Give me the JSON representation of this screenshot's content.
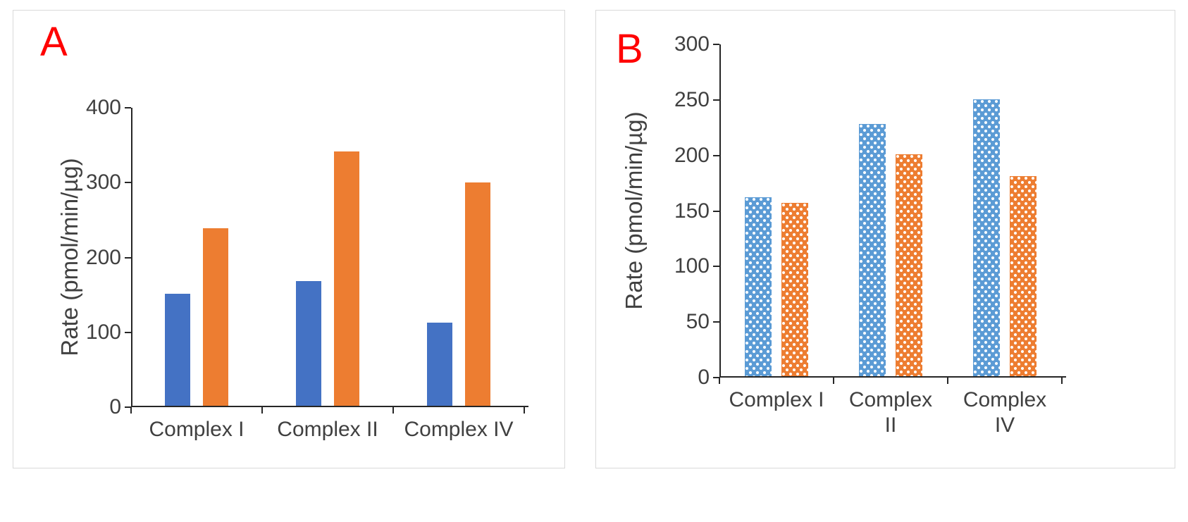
{
  "figure": {
    "background": "#FFFFFF",
    "panel_border_color": "#D9D9D9",
    "panel_label_color": "#FF0000",
    "axis_line_color": "#262626",
    "text_color": "#404040"
  },
  "chart_data": [
    {
      "panel_label": "A",
      "type": "bar",
      "title": "",
      "ylabel": "Rate (pmol/min/µg)",
      "xlabel": "",
      "categories": [
        "Complex I",
        "Complex II",
        "Complex IV"
      ],
      "series": [
        {
          "name": "series-1-blue",
          "color": "#4472C4",
          "fill_pattern": "solid",
          "values": [
            150,
            167,
            111
          ]
        },
        {
          "name": "series-2-orange",
          "color": "#ED7D31",
          "fill_pattern": "solid",
          "values": [
            237,
            340,
            298
          ]
        }
      ],
      "ylim": [
        0,
        400
      ],
      "yticks": [
        0,
        100,
        200,
        300,
        400
      ],
      "grid": false,
      "legend": "none"
    },
    {
      "panel_label": "B",
      "type": "bar",
      "title": "",
      "ylabel": "Rate (pmol/min/µg)",
      "xlabel": "",
      "categories": [
        "Complex I",
        "Complex II",
        "Complex IV"
      ],
      "series": [
        {
          "name": "series-1-blue",
          "color": "#5B9BD5",
          "fill_pattern": "dotted-white",
          "values": [
            161,
            227,
            249
          ]
        },
        {
          "name": "series-2-orange",
          "color": "#ED7D31",
          "fill_pattern": "dotted-white",
          "values": [
            156,
            200,
            180
          ]
        }
      ],
      "ylim": [
        0,
        300
      ],
      "yticks": [
        0,
        50,
        100,
        150,
        200,
        250,
        300
      ],
      "grid": false,
      "legend": "none"
    }
  ]
}
